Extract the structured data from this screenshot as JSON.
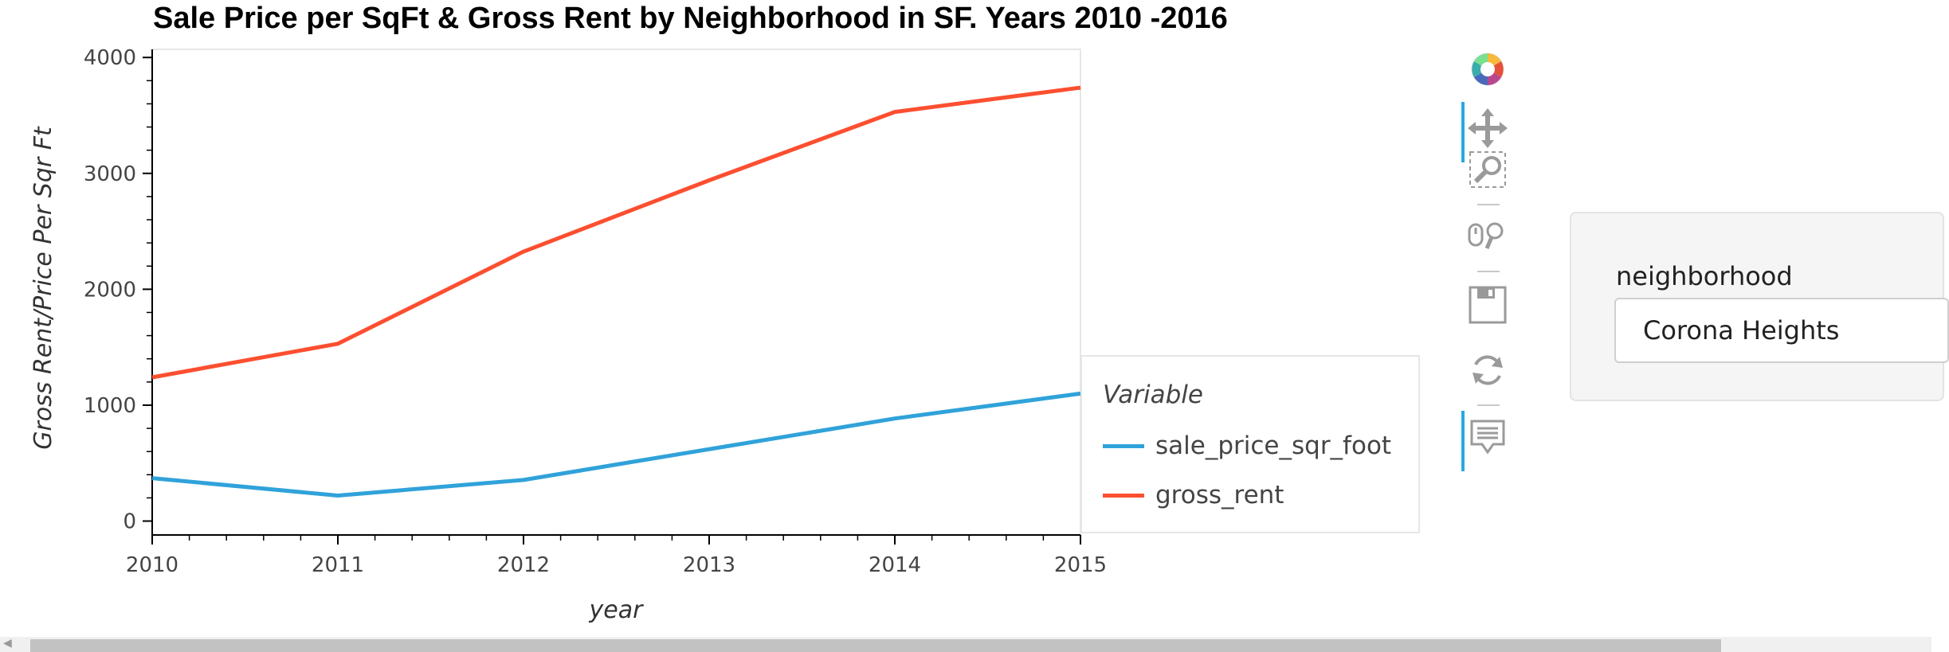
{
  "chart_data": {
    "type": "line",
    "title": "Sale Price per SqFt & Gross Rent by Neighborhood in SF. Years 2010 -2016",
    "xlabel": "year",
    "ylabel": "Gross Rent/Price Per Sqr Ft",
    "x": [
      2010,
      2011,
      2012,
      2013,
      2014,
      2015
    ],
    "x_ticks": [
      "2010",
      "2011",
      "2012",
      "2013",
      "2014",
      "2015"
    ],
    "y_ticks": [
      "0",
      "1000",
      "2000",
      "3000",
      "4000"
    ],
    "xlim": [
      2010,
      2015
    ],
    "ylim": [
      -120,
      4070
    ],
    "grid": false,
    "legend_title": "Variable",
    "legend_position": "right",
    "series": [
      {
        "name": "sale_price_sqr_foot",
        "color": "#30a2da",
        "values": [
          370,
          220,
          355,
          620,
          885,
          1100
        ]
      },
      {
        "name": "gross_rent",
        "color": "#fc4f30",
        "values": [
          1240,
          1530,
          2325,
          2940,
          3530,
          3740
        ]
      }
    ]
  },
  "toolbar": {
    "tools": [
      "bokeh-logo-icon",
      "pan-icon",
      "box-zoom-icon",
      "wheel-zoom-icon",
      "save-icon",
      "reset-icon",
      "hover-icon"
    ],
    "accent_color": "#26aae1"
  },
  "widget": {
    "label": "neighborhood",
    "selected": "Corona Heights"
  }
}
